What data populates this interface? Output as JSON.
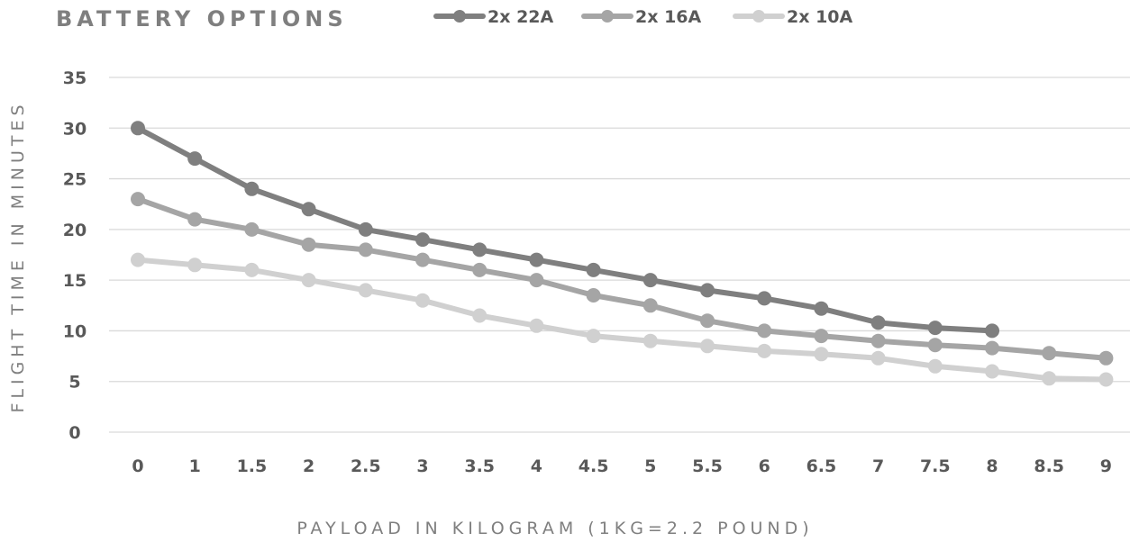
{
  "chart_data": {
    "type": "line",
    "title": "BATTERY OPTIONS",
    "xlabel": "PAYLOAD IN KILOGRAM (1KG=2.2 POUND)",
    "ylabel": "FLIGHT TIME IN MINUTES",
    "categories": [
      "0",
      "1",
      "1.5",
      "2",
      "2.5",
      "3",
      "3.5",
      "4",
      "4.5",
      "5",
      "5.5",
      "6",
      "6.5",
      "7",
      "7.5",
      "8",
      "8.5",
      "9"
    ],
    "ylim": [
      0,
      35
    ],
    "yticks": [
      0,
      5,
      10,
      15,
      20,
      25,
      30,
      35
    ],
    "grid": true,
    "legend_position": "top",
    "series": [
      {
        "name": "2x 22A",
        "color": "#7f7f7f",
        "values": [
          30,
          27,
          24,
          22,
          20,
          19,
          18,
          17,
          16,
          15,
          14,
          13.2,
          12.2,
          10.8,
          10.3,
          10,
          null,
          null
        ]
      },
      {
        "name": "2x 16A",
        "color": "#a5a5a5",
        "values": [
          23,
          21,
          20,
          18.5,
          18,
          17,
          16,
          15,
          13.5,
          12.5,
          11,
          10,
          9.5,
          9,
          8.6,
          8.3,
          7.8,
          7.3
        ]
      },
      {
        "name": "2x 10A",
        "color": "#d0d0d0",
        "values": [
          17,
          16.5,
          16,
          15,
          14,
          13,
          11.5,
          10.5,
          9.5,
          9,
          8.5,
          8,
          7.7,
          7.3,
          6.5,
          6,
          5.3,
          5.2
        ]
      }
    ]
  }
}
